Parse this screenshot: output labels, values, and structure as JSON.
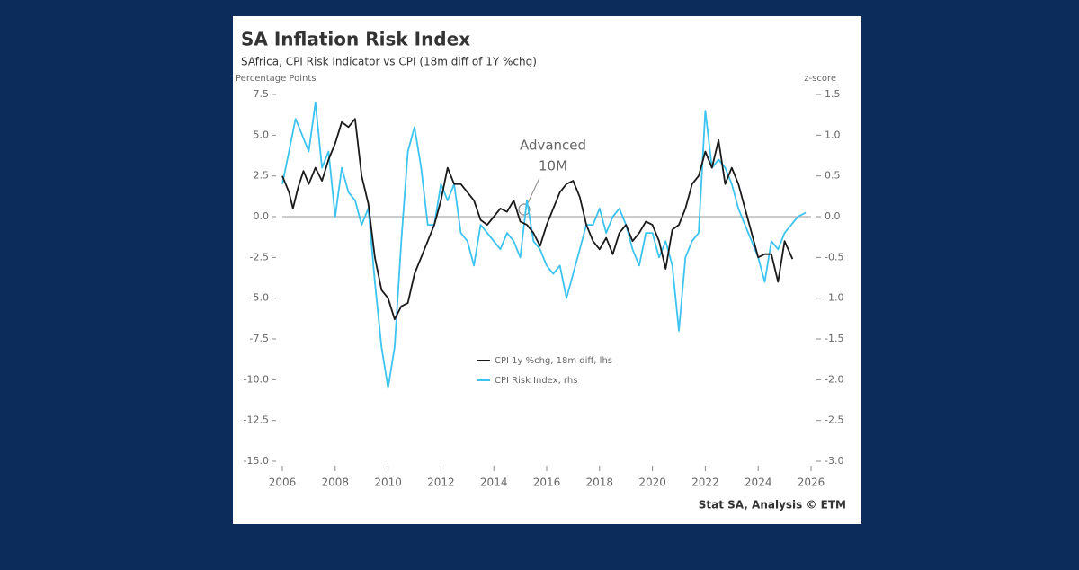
{
  "chart_data": {
    "type": "line",
    "title": "SA Inflation Risk Index",
    "subtitle": "SAfrica, CPI Risk Indicator vs CPI (18m diff of 1Y %chg)",
    "ylabel": "Percentage Points",
    "y2label": "z-score",
    "source": "Stat SA, Analysis © ETM",
    "annotation": [
      "Advanced",
      "10M"
    ],
    "xlim": [
      2006,
      2026
    ],
    "xticks": [
      2006,
      2008,
      2010,
      2012,
      2014,
      2016,
      2018,
      2020,
      2022,
      2024,
      2026
    ],
    "ylim": [
      -15,
      7.5
    ],
    "yticks": [
      {
        "value": -15,
        "label": "-15.0"
      },
      -12.5,
      {
        "value": -10,
        "label": "-10.0"
      },
      -7.5,
      {
        "value": -5,
        "label": "-5.0"
      },
      -2.5,
      {
        "value": 0,
        "label": "0.0"
      },
      2.5,
      {
        "value": 5,
        "label": "5.0"
      },
      7.5
    ],
    "y2lim": [
      -3,
      1.5
    ],
    "y2ticks": [
      {
        "value": -3,
        "label": "-3.0"
      },
      -2.5,
      {
        "value": -2,
        "label": "-2.0"
      },
      -1.5,
      {
        "value": -1,
        "label": "-1.0"
      },
      -0.5,
      {
        "value": 0,
        "label": "0.0"
      },
      0.5,
      {
        "value": 1,
        "label": "1.0"
      },
      1.5
    ],
    "zero_line": true,
    "series": [
      {
        "name": "CPI 1y %chg, 18m diff, lhs",
        "color": "#1a1a1a",
        "axis": "y",
        "x": [
          2006.0,
          2006.25,
          2006.4,
          2006.6,
          2006.8,
          2007.0,
          2007.25,
          2007.5,
          2007.75,
          2008.0,
          2008.25,
          2008.5,
          2008.75,
          2009.0,
          2009.25,
          2009.5,
          2009.75,
          2010.0,
          2010.25,
          2010.5,
          2010.75,
          2011.0,
          2011.25,
          2011.5,
          2011.75,
          2012.0,
          2012.25,
          2012.5,
          2012.75,
          2013.0,
          2013.25,
          2013.5,
          2013.75,
          2014.0,
          2014.25,
          2014.5,
          2014.75,
          2015.0,
          2015.25,
          2015.5,
          2015.75,
          2016.0,
          2016.25,
          2016.5,
          2016.75,
          2017.0,
          2017.25,
          2017.5,
          2017.75,
          2018.0,
          2018.25,
          2018.5,
          2018.75,
          2019.0,
          2019.25,
          2019.5,
          2019.75,
          2020.0,
          2020.25,
          2020.5,
          2020.75,
          2021.0,
          2021.25,
          2021.5,
          2021.75,
          2022.0,
          2022.25,
          2022.5,
          2022.75,
          2023.0,
          2023.25,
          2023.5,
          2023.75,
          2024.0,
          2024.25,
          2024.5,
          2024.75,
          2025.0,
          2025.3
        ],
        "values": [
          2.5,
          1.5,
          0.5,
          1.8,
          2.8,
          2.0,
          3.0,
          2.2,
          3.5,
          4.5,
          5.8,
          5.5,
          6.0,
          2.5,
          0.8,
          -2.5,
          -4.5,
          -5.0,
          -6.3,
          -5.5,
          -5.3,
          -3.5,
          -2.5,
          -1.5,
          -0.5,
          1.0,
          3.0,
          2.0,
          2.0,
          1.5,
          1.0,
          -0.2,
          -0.5,
          0.0,
          0.5,
          0.3,
          1.0,
          -0.3,
          -0.5,
          -1.0,
          -1.8,
          -0.5,
          0.5,
          1.5,
          2.0,
          2.2,
          1.2,
          -0.5,
          -1.5,
          -2.0,
          -1.3,
          -2.3,
          -1.0,
          -0.5,
          -1.5,
          -1.0,
          -0.3,
          -0.5,
          -1.5,
          -3.2,
          -0.8,
          -0.5,
          0.5,
          2.0,
          2.5,
          4.0,
          3.0,
          4.7,
          2.0,
          3.0,
          2.0,
          0.5,
          -1.0,
          -2.5,
          -2.3,
          -2.3,
          -4.0,
          -1.5,
          -2.6
        ]
      },
      {
        "name": "CPI Risk Index, rhs",
        "color": "#3cc3f0",
        "axis": "y2",
        "x": [
          2006.0,
          2006.25,
          2006.5,
          2006.75,
          2007.0,
          2007.25,
          2007.5,
          2007.75,
          2008.0,
          2008.25,
          2008.5,
          2008.75,
          2009.0,
          2009.25,
          2009.5,
          2009.75,
          2010.0,
          2010.25,
          2010.5,
          2010.75,
          2011.0,
          2011.25,
          2011.5,
          2011.75,
          2012.0,
          2012.25,
          2012.5,
          2012.75,
          2013.0,
          2013.25,
          2013.5,
          2013.75,
          2014.0,
          2014.25,
          2014.5,
          2014.75,
          2015.0,
          2015.25,
          2015.5,
          2015.75,
          2016.0,
          2016.25,
          2016.5,
          2016.75,
          2017.0,
          2017.25,
          2017.5,
          2017.75,
          2018.0,
          2018.25,
          2018.5,
          2018.75,
          2019.0,
          2019.25,
          2019.5,
          2019.75,
          2020.0,
          2020.25,
          2020.5,
          2020.75,
          2021.0,
          2021.25,
          2021.5,
          2021.75,
          2022.0,
          2022.25,
          2022.5,
          2022.75,
          2023.0,
          2023.25,
          2023.5,
          2023.75,
          2024.0,
          2024.25,
          2024.5,
          2024.75,
          2025.0,
          2025.25,
          2025.5,
          2025.8
        ],
        "values": [
          0.4,
          0.8,
          1.2,
          1.0,
          0.8,
          1.4,
          0.6,
          0.8,
          0.0,
          0.6,
          0.3,
          0.2,
          -0.1,
          0.1,
          -0.8,
          -1.6,
          -2.1,
          -1.6,
          -0.3,
          0.8,
          1.1,
          0.6,
          -0.1,
          -0.1,
          0.4,
          0.2,
          0.4,
          -0.2,
          -0.3,
          -0.6,
          -0.1,
          -0.2,
          -0.3,
          -0.4,
          -0.2,
          -0.3,
          -0.5,
          0.2,
          -0.3,
          -0.4,
          -0.6,
          -0.7,
          -0.6,
          -1.0,
          -0.7,
          -0.4,
          -0.1,
          -0.1,
          0.1,
          -0.2,
          0.0,
          0.1,
          -0.1,
          -0.4,
          -0.6,
          -0.2,
          -0.2,
          -0.5,
          -0.3,
          -0.6,
          -1.4,
          -0.5,
          -0.3,
          -0.2,
          1.3,
          0.6,
          0.7,
          0.6,
          0.4,
          0.1,
          -0.1,
          -0.3,
          -0.5,
          -0.8,
          -0.3,
          -0.4,
          -0.2,
          -0.1,
          0.0,
          0.05
        ]
      }
    ]
  }
}
